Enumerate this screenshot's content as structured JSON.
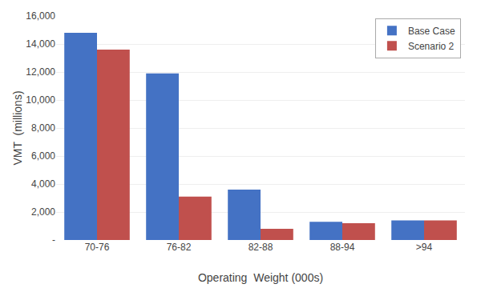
{
  "chart_data": {
    "type": "bar",
    "categories": [
      "70-76",
      "76-82",
      "82-88",
      "88-94",
      ">94"
    ],
    "series": [
      {
        "name": "Base Case",
        "color": "#4472C4",
        "values": [
          14800,
          11900,
          3600,
          1300,
          1400
        ]
      },
      {
        "name": "Scenario 2",
        "color": "#C0504D",
        "values": [
          13600,
          3100,
          800,
          1200,
          1400
        ]
      }
    ],
    "xlabel": "Operating  Weight (000s)",
    "ylabel": "VMT  (millions)",
    "ylim": [
      0,
      16000
    ],
    "yticks": [
      {
        "value": 0,
        "label": "-"
      },
      {
        "value": 2000,
        "label": "2,000"
      },
      {
        "value": 4000,
        "label": "4,000"
      },
      {
        "value": 6000,
        "label": "6,000"
      },
      {
        "value": 8000,
        "label": "8,000"
      },
      {
        "value": 10000,
        "label": "10,000"
      },
      {
        "value": 12000,
        "label": "12,000"
      },
      {
        "value": 14000,
        "label": "14,000"
      },
      {
        "value": 16000,
        "label": "16,000"
      }
    ],
    "grid": true,
    "legend": "upper right"
  }
}
